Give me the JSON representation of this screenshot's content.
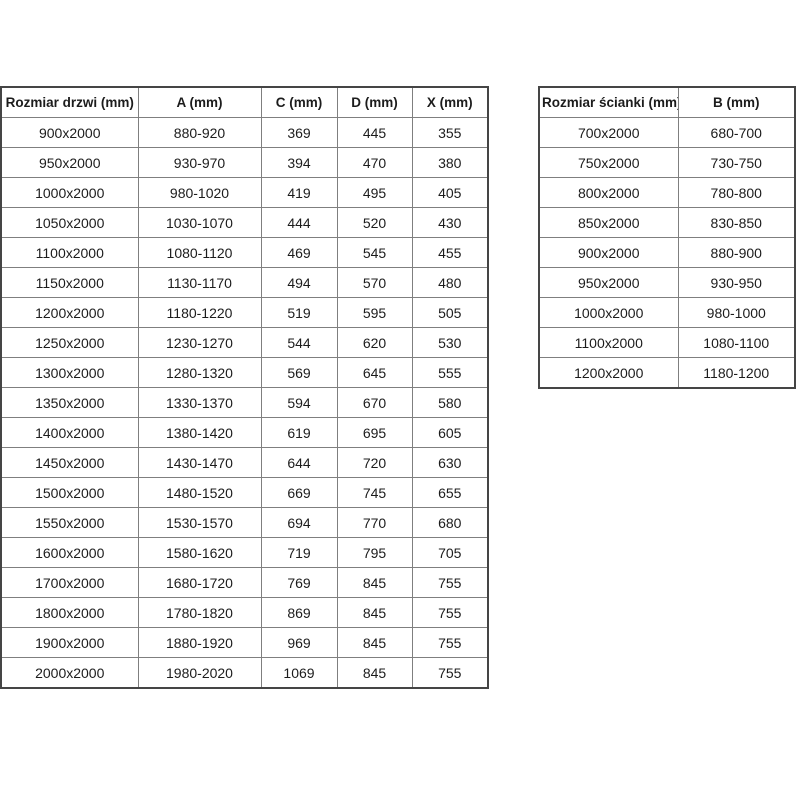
{
  "colors": {
    "background": "#ffffff",
    "text": "#1c1c1c",
    "border_outer": "#454545",
    "border_inner": "#7f7f7f"
  },
  "tables": [
    {
      "headers": [
        "Rozmiar drzwi (mm)",
        "A (mm)",
        "C (mm)",
        "D (mm)",
        "X (mm)"
      ],
      "rows": [
        [
          "900x2000",
          "880-920",
          "369",
          "445",
          "355"
        ],
        [
          "950x2000",
          "930-970",
          "394",
          "470",
          "380"
        ],
        [
          "1000x2000",
          "980-1020",
          "419",
          "495",
          "405"
        ],
        [
          "1050x2000",
          "1030-1070",
          "444",
          "520",
          "430"
        ],
        [
          "1100x2000",
          "1080-1120",
          "469",
          "545",
          "455"
        ],
        [
          "1150x2000",
          "1130-1170",
          "494",
          "570",
          "480"
        ],
        [
          "1200x2000",
          "1180-1220",
          "519",
          "595",
          "505"
        ],
        [
          "1250x2000",
          "1230-1270",
          "544",
          "620",
          "530"
        ],
        [
          "1300x2000",
          "1280-1320",
          "569",
          "645",
          "555"
        ],
        [
          "1350x2000",
          "1330-1370",
          "594",
          "670",
          "580"
        ],
        [
          "1400x2000",
          "1380-1420",
          "619",
          "695",
          "605"
        ],
        [
          "1450x2000",
          "1430-1470",
          "644",
          "720",
          "630"
        ],
        [
          "1500x2000",
          "1480-1520",
          "669",
          "745",
          "655"
        ],
        [
          "1550x2000",
          "1530-1570",
          "694",
          "770",
          "680"
        ],
        [
          "1600x2000",
          "1580-1620",
          "719",
          "795",
          "705"
        ],
        [
          "1700x2000",
          "1680-1720",
          "769",
          "845",
          "755"
        ],
        [
          "1800x2000",
          "1780-1820",
          "869",
          "845",
          "755"
        ],
        [
          "1900x2000",
          "1880-1920",
          "969",
          "845",
          "755"
        ],
        [
          "2000x2000",
          "1980-2020",
          "1069",
          "845",
          "755"
        ]
      ]
    },
    {
      "headers": [
        "Rozmiar ścianki (mm)",
        "B (mm)"
      ],
      "rows": [
        [
          "700x2000",
          "680-700"
        ],
        [
          "750x2000",
          "730-750"
        ],
        [
          "800x2000",
          "780-800"
        ],
        [
          "850x2000",
          "830-850"
        ],
        [
          "900x2000",
          "880-900"
        ],
        [
          "950x2000",
          "930-950"
        ],
        [
          "1000x2000",
          "980-1000"
        ],
        [
          "1100x2000",
          "1080-1100"
        ],
        [
          "1200x2000",
          "1180-1200"
        ]
      ]
    }
  ]
}
